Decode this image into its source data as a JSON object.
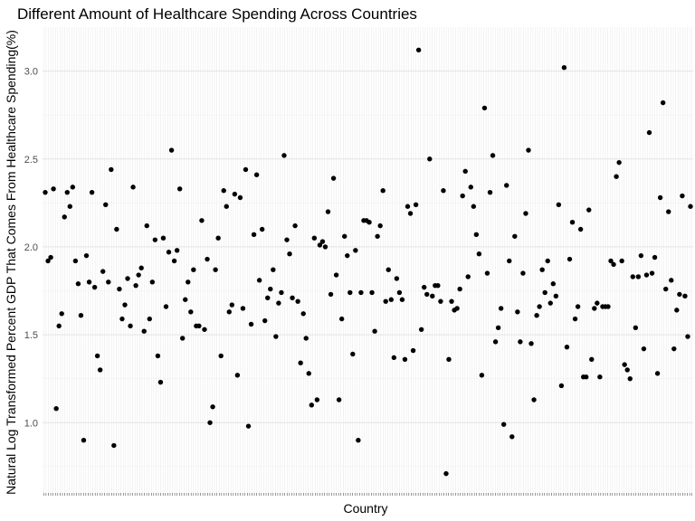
{
  "chart_data": {
    "type": "scatter",
    "title": "Different Amount of Healthcare Spending Across Countries",
    "xlabel": "Country",
    "ylabel": "Natural Log Transformed Percent GDP That Comes From Healthcare Spending(%)",
    "ylim": [
      0.6,
      3.25
    ],
    "yticks": [
      1.0,
      1.5,
      2.0,
      2.5,
      3.0
    ],
    "ytick_labels": [
      "1.0",
      "1.5",
      "2.0",
      "2.5",
      "3.0"
    ],
    "grid": true,
    "legend": "none",
    "point_color": "#000000",
    "category_count": 278,
    "values": [
      2.31,
      1.92,
      1.94,
      2.33,
      1.08,
      1.55,
      1.62,
      2.17,
      2.31,
      2.23,
      2.34,
      1.92,
      1.79,
      1.61,
      0.9,
      1.95,
      1.8,
      2.31,
      1.77,
      1.38,
      1.3,
      1.86,
      2.24,
      1.8,
      2.44,
      0.87,
      2.1,
      1.76,
      1.59,
      1.67,
      1.82,
      1.55,
      2.34,
      1.78,
      1.84,
      1.88,
      1.52,
      2.12,
      1.59,
      1.8,
      2.04,
      1.38,
      1.23,
      2.05,
      1.66,
      1.97,
      2.55,
      1.92,
      1.98,
      2.33,
      1.48,
      1.7,
      1.8,
      1.63,
      1.87,
      1.55,
      1.55,
      2.15,
      1.53,
      1.93,
      1.0,
      1.09,
      1.87,
      2.05,
      1.38,
      2.32,
      2.23,
      1.63,
      1.67,
      2.3,
      1.27,
      2.28,
      1.65,
      2.44,
      0.98,
      1.56,
      2.07,
      2.41,
      1.81,
      2.1,
      1.58,
      1.71,
      1.76,
      1.87,
      1.49,
      1.68,
      1.74,
      2.52,
      2.04,
      1.96,
      1.71,
      2.12,
      1.69,
      1.34,
      1.62,
      1.48,
      1.28,
      1.1,
      2.05,
      1.13,
      2.01,
      2.03,
      2.0,
      2.2,
      1.73,
      2.39,
      1.84,
      1.13,
      1.59,
      2.06,
      1.95,
      1.74,
      1.39,
      1.98,
      0.9,
      1.74,
      2.15,
      2.15,
      2.14,
      1.74,
      1.52,
      2.06,
      2.12,
      2.32,
      1.69,
      1.87,
      1.7,
      1.37,
      1.82,
      1.74,
      1.7,
      1.36,
      2.23,
      2.19,
      1.41,
      2.24,
      3.12,
      1.53,
      1.77,
      1.73,
      2.5,
      1.72,
      1.78,
      1.78,
      1.69,
      2.32,
      0.71,
      1.36,
      1.69,
      1.64,
      1.65,
      1.76,
      2.29,
      2.43,
      1.83,
      2.34,
      2.23,
      2.07,
      1.96,
      1.27,
      2.79,
      1.85,
      2.31,
      2.52,
      1.46,
      1.54,
      1.65,
      0.99,
      2.35,
      1.92,
      0.92,
      2.06,
      1.63,
      1.46,
      1.85,
      2.19,
      2.55,
      1.45,
      1.13,
      1.61,
      1.66,
      1.87,
      1.74,
      1.92,
      1.68,
      1.79,
      1.72,
      2.24,
      1.21,
      3.02,
      1.43,
      1.93,
      2.14,
      1.59,
      1.66,
      2.1,
      1.26,
      1.26,
      2.21,
      1.36,
      1.65,
      1.68,
      1.26,
      1.66,
      1.66,
      1.66,
      1.92,
      1.9,
      2.4,
      2.48,
      1.92,
      1.33,
      1.3,
      1.25,
      1.83,
      1.54,
      1.83,
      1.95,
      1.42,
      1.84,
      2.65,
      1.85,
      1.94,
      1.28,
      2.28,
      2.82,
      1.76,
      2.2,
      1.81,
      1.42,
      1.64,
      1.73,
      2.29,
      1.72,
      1.49,
      2.23
    ]
  }
}
